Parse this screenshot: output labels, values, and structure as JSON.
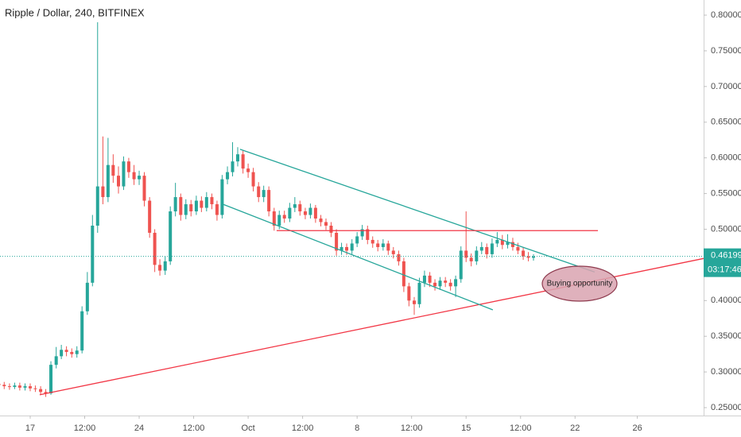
{
  "chart_data": {
    "type": "candlestick",
    "title": "Ripple / Dollar, 240, BITFINEX",
    "up_color": "#26a69a",
    "down_color": "#ef5350",
    "x": [
      -2,
      -1.67,
      -1.33,
      -1,
      -0.67,
      -0.33,
      0,
      0.33,
      0.67,
      1,
      1.33,
      1.67,
      2,
      2.33,
      2.67,
      3,
      3.33,
      3.67,
      4,
      4.33,
      4.67,
      5,
      5.33,
      5.67,
      6,
      6.33,
      6.67,
      7,
      7.33,
      7.67,
      8,
      8.33,
      8.67,
      9,
      9.33,
      9.67,
      10,
      10.33,
      10.67,
      11,
      11.33,
      11.67,
      12,
      12.33,
      12.67,
      13,
      13.33,
      13.67,
      14,
      14.33,
      14.67,
      15,
      15.33,
      15.67,
      16,
      16.33,
      16.67,
      17,
      17.33,
      17.67,
      18,
      18.33,
      18.67,
      19,
      19.33,
      19.67,
      20,
      20.33,
      20.67,
      21,
      21.33,
      21.67,
      22,
      22.33,
      22.67,
      23,
      23.33,
      23.67,
      24,
      24.33,
      24.67,
      25,
      25.33,
      25.67,
      26,
      26.33,
      26.67,
      27,
      27.33,
      27.67,
      28,
      28.33,
      28.67,
      29,
      29.33,
      29.67,
      30,
      30.33,
      30.67,
      31,
      31.33,
      31.67,
      32,
      32.33
    ],
    "open": [
      0.283,
      0.282,
      0.28,
      0.279,
      0.281,
      0.278,
      0.28,
      0.277,
      0.276,
      0.272,
      0.27,
      0.31,
      0.322,
      0.331,
      0.328,
      0.325,
      0.33,
      0.385,
      0.425,
      0.505,
      0.56,
      0.545,
      0.59,
      0.575,
      0.56,
      0.595,
      0.58,
      0.57,
      0.575,
      0.54,
      0.495,
      0.45,
      0.442,
      0.455,
      0.525,
      0.545,
      0.52,
      0.535,
      0.525,
      0.54,
      0.53,
      0.545,
      0.535,
      0.52,
      0.57,
      0.58,
      0.595,
      0.605,
      0.585,
      0.58,
      0.56,
      0.545,
      0.555,
      0.525,
      0.505,
      0.52,
      0.515,
      0.53,
      0.535,
      0.525,
      0.52,
      0.53,
      0.515,
      0.51,
      0.505,
      0.495,
      0.47,
      0.475,
      0.47,
      0.48,
      0.49,
      0.5,
      0.485,
      0.48,
      0.475,
      0.48,
      0.47,
      0.465,
      0.455,
      0.42,
      0.4,
      0.395,
      0.425,
      0.435,
      0.425,
      0.42,
      0.428,
      0.425,
      0.42,
      0.43,
      0.47,
      0.46,
      0.455,
      0.47,
      0.475,
      0.465,
      0.48,
      0.485,
      0.478,
      0.482,
      0.475,
      0.47,
      0.462,
      0.46
    ],
    "high": [
      0.287,
      0.286,
      0.284,
      0.285,
      0.285,
      0.284,
      0.284,
      0.281,
      0.28,
      0.276,
      0.315,
      0.335,
      0.338,
      0.336,
      0.333,
      0.336,
      0.392,
      0.44,
      0.52,
      0.79,
      0.63,
      0.628,
      0.605,
      0.588,
      0.602,
      0.6,
      0.59,
      0.582,
      0.58,
      0.545,
      0.5,
      0.458,
      0.462,
      0.532,
      0.565,
      0.55,
      0.542,
      0.541,
      0.547,
      0.546,
      0.552,
      0.55,
      0.54,
      0.576,
      0.588,
      0.622,
      0.615,
      0.61,
      0.592,
      0.586,
      0.566,
      0.561,
      0.56,
      0.53,
      0.526,
      0.526,
      0.537,
      0.545,
      0.54,
      0.53,
      0.536,
      0.534,
      0.52,
      0.515,
      0.51,
      0.5,
      0.481,
      0.48,
      0.486,
      0.496,
      0.506,
      0.505,
      0.49,
      0.485,
      0.486,
      0.484,
      0.475,
      0.47,
      0.46,
      0.425,
      0.405,
      0.432,
      0.442,
      0.44,
      0.43,
      0.433,
      0.433,
      0.43,
      0.435,
      0.476,
      0.525,
      0.466,
      0.476,
      0.482,
      0.48,
      0.487,
      0.496,
      0.492,
      0.493,
      0.488,
      0.481,
      0.475,
      0.468,
      0.465
    ],
    "low": [
      0.278,
      0.276,
      0.275,
      0.276,
      0.274,
      0.274,
      0.273,
      0.272,
      0.268,
      0.265,
      0.268,
      0.305,
      0.318,
      0.322,
      0.32,
      0.32,
      0.326,
      0.38,
      0.42,
      0.495,
      0.535,
      0.538,
      0.565,
      0.55,
      0.555,
      0.572,
      0.562,
      0.562,
      0.532,
      0.488,
      0.44,
      0.435,
      0.436,
      0.45,
      0.518,
      0.512,
      0.514,
      0.518,
      0.52,
      0.524,
      0.525,
      0.528,
      0.512,
      0.515,
      0.563,
      0.574,
      0.588,
      0.578,
      0.572,
      0.553,
      0.538,
      0.538,
      0.518,
      0.498,
      0.5,
      0.509,
      0.51,
      0.524,
      0.519,
      0.514,
      0.515,
      0.509,
      0.504,
      0.499,
      0.489,
      0.463,
      0.464,
      0.464,
      0.465,
      0.475,
      0.485,
      0.479,
      0.474,
      0.469,
      0.47,
      0.464,
      0.459,
      0.449,
      0.412,
      0.392,
      0.38,
      0.39,
      0.419,
      0.419,
      0.414,
      0.415,
      0.419,
      0.414,
      0.405,
      0.425,
      0.454,
      0.448,
      0.45,
      0.465,
      0.459,
      0.46,
      0.475,
      0.472,
      0.473,
      0.47,
      0.465,
      0.457,
      0.455,
      0.456
    ],
    "close": [
      0.282,
      0.28,
      0.279,
      0.281,
      0.278,
      0.28,
      0.277,
      0.276,
      0.272,
      0.27,
      0.31,
      0.322,
      0.331,
      0.328,
      0.325,
      0.33,
      0.385,
      0.425,
      0.505,
      0.56,
      0.545,
      0.59,
      0.575,
      0.56,
      0.595,
      0.58,
      0.57,
      0.575,
      0.54,
      0.495,
      0.45,
      0.442,
      0.455,
      0.525,
      0.545,
      0.52,
      0.535,
      0.525,
      0.54,
      0.53,
      0.545,
      0.535,
      0.52,
      0.57,
      0.58,
      0.595,
      0.605,
      0.585,
      0.58,
      0.56,
      0.545,
      0.555,
      0.525,
      0.505,
      0.52,
      0.515,
      0.53,
      0.535,
      0.525,
      0.52,
      0.53,
      0.515,
      0.51,
      0.505,
      0.495,
      0.47,
      0.475,
      0.47,
      0.48,
      0.49,
      0.5,
      0.485,
      0.48,
      0.475,
      0.48,
      0.47,
      0.465,
      0.455,
      0.42,
      0.4,
      0.395,
      0.425,
      0.435,
      0.425,
      0.42,
      0.428,
      0.425,
      0.42,
      0.43,
      0.47,
      0.46,
      0.455,
      0.47,
      0.475,
      0.465,
      0.48,
      0.485,
      0.478,
      0.482,
      0.475,
      0.47,
      0.462,
      0.46,
      0.46199
    ],
    "xlim": [
      -1.94,
      43.26
    ],
    "ylim": [
      0.2389,
      0.8212
    ],
    "xticks": [
      {
        "value": 0,
        "label": "17"
      },
      {
        "value": 3.5,
        "label": "12:00"
      },
      {
        "value": 7,
        "label": "24"
      },
      {
        "value": 10.5,
        "label": "12:00"
      },
      {
        "value": 14,
        "label": "Oct"
      },
      {
        "value": 17.5,
        "label": "12:00"
      },
      {
        "value": 21,
        "label": "8"
      },
      {
        "value": 24.5,
        "label": "12:00"
      },
      {
        "value": 28,
        "label": "15"
      },
      {
        "value": 31.5,
        "label": "12:00"
      },
      {
        "value": 35,
        "label": "22"
      },
      {
        "value": 39,
        "label": "26"
      }
    ],
    "yticks": [
      {
        "value": 0.25,
        "label": "0.25000"
      },
      {
        "value": 0.3,
        "label": "0.30000"
      },
      {
        "value": 0.35,
        "label": "0.35000"
      },
      {
        "value": 0.4,
        "label": "0.40000"
      },
      {
        "value": 0.45,
        "label": "0.45000"
      },
      {
        "value": 0.5,
        "label": "0.50000"
      },
      {
        "value": 0.55,
        "label": "0.55000"
      },
      {
        "value": 0.6,
        "label": "0.60000"
      },
      {
        "value": 0.65,
        "label": "0.65000"
      },
      {
        "value": 0.7,
        "label": "0.70000"
      },
      {
        "value": 0.75,
        "label": "0.75000"
      },
      {
        "value": 0.8,
        "label": "0.80000"
      }
    ],
    "grid": false,
    "last_price": 0.46199,
    "last_price_label": "0.46199",
    "countdown": "03:17:46",
    "price_label_color": "#26a69a",
    "drawings": [
      {
        "color": "#f23645",
        "points": [
          [
            0.61,
            0.268
          ],
          [
            43.26,
            0.459
          ]
        ]
      },
      {
        "color": "#26a69a",
        "points": [
          [
            13.48,
            0.612
          ],
          [
            36.26,
            0.44
          ]
        ]
      },
      {
        "color": "#26a69a",
        "points": [
          [
            12.26,
            0.536
          ],
          [
            29.72,
            0.387
          ]
        ]
      },
      {
        "color": "#f23645",
        "points": [
          [
            15.83,
            0.498
          ],
          [
            36.47,
            0.498
          ]
        ]
      }
    ],
    "annotation": "Buying opportunity"
  }
}
